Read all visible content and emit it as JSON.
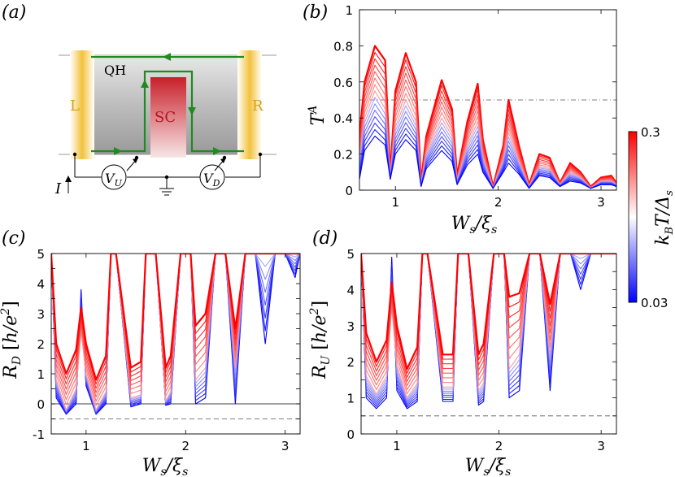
{
  "panels": {
    "a": {
      "label": "(a)"
    },
    "b": {
      "label": "(b)"
    },
    "c": {
      "label": "(c)"
    },
    "d": {
      "label": "(d)"
    }
  },
  "schematic": {
    "qh": "QH",
    "left_lead": "L",
    "right_lead": "R",
    "sc": "SC",
    "current": "I",
    "vu": "V",
    "vu_sub": "U",
    "vd": "V",
    "vd_sub": "D",
    "colors": {
      "lead": "#f2c23a",
      "edge": "#1f8a1f",
      "sc_top": "#c8202a",
      "sample": "#b9b9b9"
    }
  },
  "colorbar": {
    "max_label": "0.3",
    "min_label": "0.03",
    "label": "k_BT/Δ_s",
    "colors": {
      "high": "#ff0000",
      "mid": "#ffffff",
      "low": "#0000ff"
    }
  },
  "chart_data": [
    {
      "panel": "b",
      "type": "line",
      "ylabel": "T^A",
      "xlabel": "W_s/ξ_s",
      "xlim": [
        0.65,
        3.15
      ],
      "ylim": [
        0,
        1
      ],
      "xticks": [
        "1",
        "2",
        "3"
      ],
      "yticks": [
        "0",
        "0.2",
        "0.4",
        "0.6",
        "0.8",
        "1"
      ],
      "reference_line": 0.5,
      "x": [
        0.65,
        0.7,
        0.8,
        0.9,
        0.95,
        1.0,
        1.1,
        1.2,
        1.25,
        1.3,
        1.45,
        1.55,
        1.6,
        1.7,
        1.8,
        1.85,
        1.95,
        2.05,
        2.1,
        2.2,
        2.3,
        2.4,
        2.5,
        2.6,
        2.7,
        2.8,
        2.9,
        3.0,
        3.1,
        3.15
      ],
      "series": [
        {
          "values": [
            0.3,
            0.6,
            0.8,
            0.72,
            0.1,
            0.55,
            0.76,
            0.6,
            0.05,
            0.3,
            0.61,
            0.45,
            0.08,
            0.38,
            0.59,
            0.28,
            0.02,
            0.25,
            0.5,
            0.25,
            0.03,
            0.2,
            0.18,
            0.04,
            0.15,
            0.1,
            0.02,
            0.07,
            0.08,
            0.04
          ]
        },
        {
          "values": [
            0.15,
            0.4,
            0.55,
            0.45,
            0.07,
            0.35,
            0.5,
            0.38,
            0.03,
            0.2,
            0.4,
            0.3,
            0.05,
            0.25,
            0.38,
            0.18,
            0.01,
            0.17,
            0.32,
            0.16,
            0.02,
            0.13,
            0.12,
            0.03,
            0.1,
            0.07,
            0.01,
            0.05,
            0.05,
            0.03
          ]
        },
        {
          "values": [
            0.06,
            0.22,
            0.3,
            0.25,
            0.06,
            0.2,
            0.28,
            0.22,
            0.02,
            0.12,
            0.22,
            0.16,
            0.03,
            0.14,
            0.2,
            0.1,
            0.01,
            0.1,
            0.15,
            0.09,
            0.01,
            0.08,
            0.07,
            0.02,
            0.05,
            0.04,
            0.01,
            0.03,
            0.03,
            0.02
          ]
        }
      ]
    },
    {
      "panel": "c",
      "type": "line",
      "ylabel": "R_D [h/e^2]",
      "xlabel": "W_s/ξ_s",
      "xlim": [
        0.65,
        3.15
      ],
      "ylim": [
        -1,
        5
      ],
      "xticks": [
        "1",
        "2",
        "3"
      ],
      "yticks": [
        "-1",
        "-0.5",
        "0",
        "0.5",
        "1",
        "1.5",
        "2",
        "2.5",
        "3",
        "3.5",
        "4",
        "4.5",
        "5"
      ],
      "reference_line": -0.5,
      "x": [
        0.65,
        0.7,
        0.8,
        0.9,
        0.95,
        1.0,
        1.1,
        1.2,
        1.25,
        1.3,
        1.45,
        1.55,
        1.6,
        1.7,
        1.8,
        1.85,
        1.95,
        2.05,
        2.1,
        2.2,
        2.3,
        2.4,
        2.5,
        2.6,
        2.7,
        2.8,
        2.9,
        3.0,
        3.1,
        3.15
      ],
      "series": [
        {
          "values": [
            5,
            2.0,
            1.0,
            1.8,
            3.2,
            2.0,
            0.8,
            1.6,
            5,
            5,
            1.2,
            1.4,
            5,
            5,
            1.2,
            1.6,
            5,
            5,
            2.6,
            3.0,
            5,
            5,
            2.5,
            5,
            5,
            5,
            5,
            5,
            5,
            5
          ]
        },
        {
          "values": [
            5,
            0.8,
            -0.2,
            0.5,
            2.4,
            1.0,
            -0.2,
            0.4,
            5,
            5,
            0.2,
            0.3,
            5,
            5,
            0.1,
            0.4,
            5,
            5,
            0.8,
            1.2,
            5,
            5,
            1.2,
            5,
            5,
            5,
            5,
            5,
            5,
            5
          ]
        },
        {
          "values": [
            5,
            0.2,
            -0.35,
            0.0,
            3.8,
            0.6,
            -0.35,
            0.0,
            5,
            5,
            -0.1,
            0.0,
            5,
            5,
            -0.05,
            0.0,
            5,
            5,
            0.0,
            0.2,
            5,
            5,
            0.0,
            5,
            5,
            2.0,
            5,
            5,
            4.2,
            5
          ]
        }
      ]
    },
    {
      "panel": "d",
      "type": "line",
      "ylabel": "R_U [h/e^2]",
      "xlabel": "W_s/ξ_s",
      "xlim": [
        0.65,
        3.15
      ],
      "ylim": [
        0,
        5
      ],
      "xticks": [
        "1",
        "2",
        "3"
      ],
      "yticks": [
        "0",
        "0.5",
        "1",
        "1.5",
        "2",
        "2.5",
        "3",
        "3.5",
        "4",
        "4.5",
        "5"
      ],
      "reference_line": 0.5,
      "x": [
        0.65,
        0.7,
        0.8,
        0.9,
        0.95,
        1.0,
        1.1,
        1.2,
        1.25,
        1.3,
        1.45,
        1.55,
        1.6,
        1.7,
        1.8,
        1.85,
        1.95,
        2.05,
        2.1,
        2.2,
        2.3,
        2.4,
        2.5,
        2.6,
        2.7,
        2.8,
        2.9,
        3.0,
        3.1,
        3.15
      ],
      "series": [
        {
          "values": [
            5,
            2.8,
            2.0,
            2.6,
            4.2,
            3.0,
            1.8,
            2.4,
            5,
            5,
            2.2,
            2.2,
            5,
            5,
            2.2,
            2.5,
            5,
            5,
            3.8,
            3.9,
            5,
            5,
            3.6,
            5,
            5,
            5,
            5,
            5,
            5,
            5
          ]
        },
        {
          "values": [
            5,
            1.6,
            1.1,
            1.6,
            3.5,
            1.9,
            1.0,
            1.4,
            5,
            5,
            1.3,
            1.3,
            5,
            5,
            1.2,
            1.4,
            5,
            5,
            1.8,
            2.2,
            5,
            5,
            2.2,
            5,
            5,
            5,
            5,
            5,
            5,
            5
          ]
        },
        {
          "values": [
            5,
            1.0,
            0.7,
            1.0,
            4.9,
            1.2,
            0.7,
            0.9,
            5,
            5,
            0.9,
            0.9,
            5,
            5,
            0.8,
            0.9,
            5,
            5,
            1.0,
            1.2,
            5,
            5,
            1.2,
            5,
            5,
            4.0,
            5,
            5,
            5,
            5
          ]
        }
      ]
    }
  ]
}
